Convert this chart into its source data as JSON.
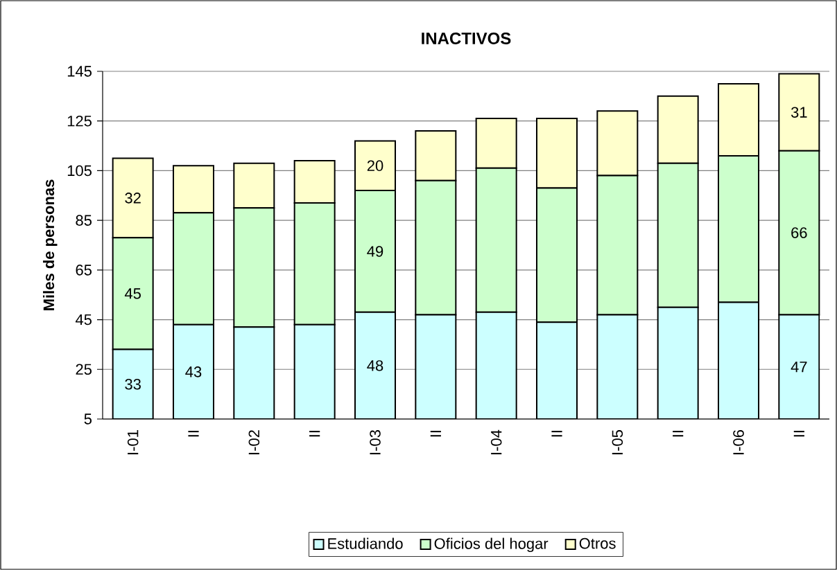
{
  "chart_data": {
    "type": "bar",
    "stacked": true,
    "title": "INACTIVOS",
    "ylabel": "Miles de personas",
    "categories": [
      "I-01",
      "II",
      "I-02",
      "II",
      "I-03",
      "II",
      "I-04",
      "II",
      "I-05",
      "II",
      "I-06",
      "II"
    ],
    "series": [
      {
        "name": "Estudiando",
        "color": "#ccffff",
        "values": [
          33,
          43,
          42,
          43,
          48,
          47,
          48,
          44,
          47,
          50,
          52,
          47
        ],
        "value_labels": [
          "33",
          "43",
          null,
          null,
          "48",
          null,
          null,
          null,
          null,
          null,
          null,
          "47"
        ]
      },
      {
        "name": "Oficios del hogar",
        "color": "#ccffcc",
        "values": [
          45,
          45,
          48,
          49,
          49,
          54,
          58,
          54,
          56,
          58,
          59,
          66
        ],
        "value_labels": [
          "45",
          null,
          null,
          null,
          "49",
          null,
          null,
          null,
          null,
          null,
          null,
          "66"
        ]
      },
      {
        "name": "Otros",
        "color": "#ffffcc",
        "values": [
          32,
          19,
          18,
          17,
          20,
          20,
          20,
          28,
          26,
          27,
          29,
          31
        ],
        "value_labels": [
          "32",
          null,
          null,
          null,
          "20",
          null,
          null,
          null,
          null,
          null,
          null,
          "31"
        ]
      }
    ],
    "ylim": [
      5,
      145
    ],
    "yticks": [
      5,
      25,
      45,
      65,
      85,
      105,
      125,
      145
    ],
    "grid": "y",
    "legend": "bottom"
  }
}
